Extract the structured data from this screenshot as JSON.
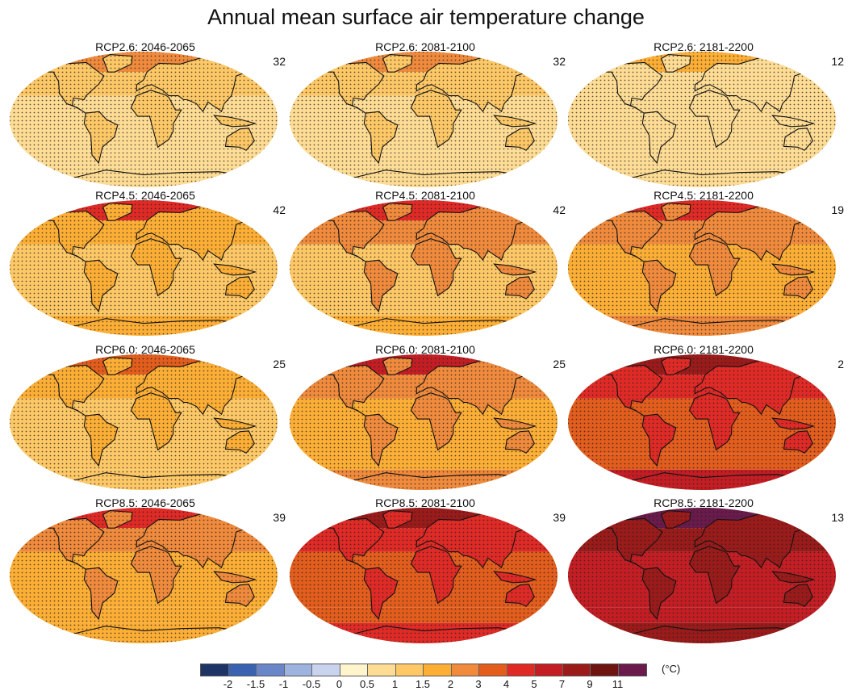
{
  "title": "Annual mean surface air temperature change",
  "colorbar": {
    "unit": "(°C)",
    "colors": [
      "#1f3466",
      "#3a62b0",
      "#6a86c8",
      "#9db3e0",
      "#c9d3ee",
      "#fff5cc",
      "#fedc94",
      "#fec866",
      "#fdae35",
      "#f08a3c",
      "#e35d1d",
      "#e02a26",
      "#c41e24",
      "#9a1b1a",
      "#6e1512",
      "#6a1a4b"
    ],
    "labels": [
      "-2",
      "-1.5",
      "-1",
      "-0.5",
      "0",
      "0.5",
      "1",
      "1.5",
      "2",
      "3",
      "4",
      "5",
      "7",
      "9",
      "11"
    ]
  },
  "panels": [
    {
      "label": "RCP2.6: 2046-2065",
      "models": "32",
      "levels": {
        "arctic": 9,
        "north": 7,
        "ocean": 6,
        "south": 6,
        "antarctic": 6,
        "land": 7
      }
    },
    {
      "label": "RCP2.6: 2081-2100",
      "models": "32",
      "levels": {
        "arctic": 9,
        "north": 7,
        "ocean": 6,
        "south": 6,
        "antarctic": 6,
        "land": 7
      }
    },
    {
      "label": "RCP2.6: 2181-2200",
      "models": "12",
      "levels": {
        "arctic": 8,
        "north": 6,
        "ocean": 6,
        "south": 6,
        "antarctic": 6,
        "land": 6
      }
    },
    {
      "label": "RCP4.5: 2046-2065",
      "models": "42",
      "levels": {
        "arctic": 11,
        "north": 8,
        "ocean": 7,
        "south": 7,
        "antarctic": 8,
        "land": 8
      }
    },
    {
      "label": "RCP4.5: 2081-2100",
      "models": "42",
      "levels": {
        "arctic": 11,
        "north": 9,
        "ocean": 7,
        "south": 7,
        "antarctic": 8,
        "land": 9
      }
    },
    {
      "label": "RCP4.5: 2181-2200",
      "models": "19",
      "levels": {
        "arctic": 11,
        "north": 9,
        "ocean": 8,
        "south": 8,
        "antarctic": 9,
        "land": 9
      }
    },
    {
      "label": "RCP6.0: 2046-2065",
      "models": "25",
      "levels": {
        "arctic": 10,
        "north": 8,
        "ocean": 7,
        "south": 7,
        "antarctic": 7,
        "land": 8
      }
    },
    {
      "label": "RCP6.0: 2081-2100",
      "models": "25",
      "levels": {
        "arctic": 12,
        "north": 9,
        "ocean": 8,
        "south": 8,
        "antarctic": 9,
        "land": 9
      }
    },
    {
      "label": "RCP6.0: 2181-2200",
      "models": "2",
      "levels": {
        "arctic": 13,
        "north": 11,
        "ocean": 10,
        "south": 10,
        "antarctic": 12,
        "land": 11
      }
    },
    {
      "label": "RCP8.5: 2046-2065",
      "models": "39",
      "levels": {
        "arctic": 11,
        "north": 9,
        "ocean": 8,
        "south": 8,
        "antarctic": 8,
        "land": 9
      }
    },
    {
      "label": "RCP8.5: 2081-2100",
      "models": "39",
      "levels": {
        "arctic": 13,
        "north": 11,
        "ocean": 10,
        "south": 10,
        "antarctic": 11,
        "land": 11
      }
    },
    {
      "label": "RCP8.5: 2181-2200",
      "models": "13",
      "levels": {
        "arctic": 15,
        "north": 13,
        "ocean": 12,
        "south": 12,
        "antarctic": 13,
        "land": 13
      }
    }
  ]
}
